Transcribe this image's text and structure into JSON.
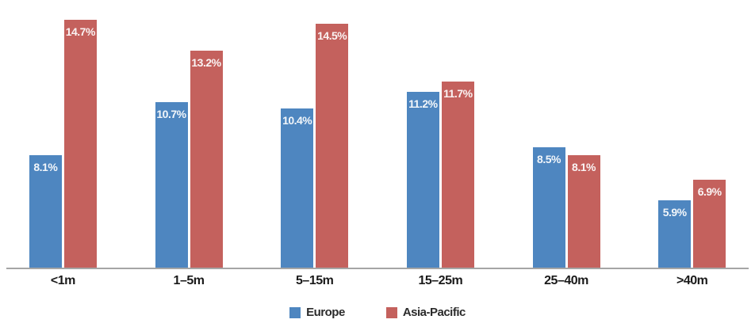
{
  "chart_data": {
    "type": "bar",
    "categories": [
      "<1m",
      "1–5m",
      "5–15m",
      "15–25m",
      "25–40m",
      ">40m"
    ],
    "series": [
      {
        "name": "Europe",
        "color": "#4e86c0",
        "values": [
          8.1,
          10.7,
          10.4,
          11.2,
          8.5,
          5.9
        ]
      },
      {
        "name": "Asia-Pacific",
        "color": "#c4615d",
        "values": [
          14.7,
          13.2,
          14.5,
          11.7,
          8.1,
          6.9
        ]
      }
    ],
    "value_labels": {
      "Europe": [
        "8.1%",
        "10.7%",
        "10.4%",
        "11.2%",
        "8.5%",
        "5.9%"
      ],
      "Asia-Pacific": [
        "14.7%",
        "13.2%",
        "14.5%",
        "11.7%",
        "8.1%",
        "6.9%"
      ]
    },
    "title": "",
    "xlabel": "",
    "ylabel": "",
    "ylim": [
      2.6,
      15.2
    ],
    "grid": false,
    "legend_position": "bottom",
    "value_label_color": "#ffffff",
    "axis_line_color": "#a5a5a5",
    "category_label_color": "#1a1a1a",
    "background": "#ffffff"
  }
}
